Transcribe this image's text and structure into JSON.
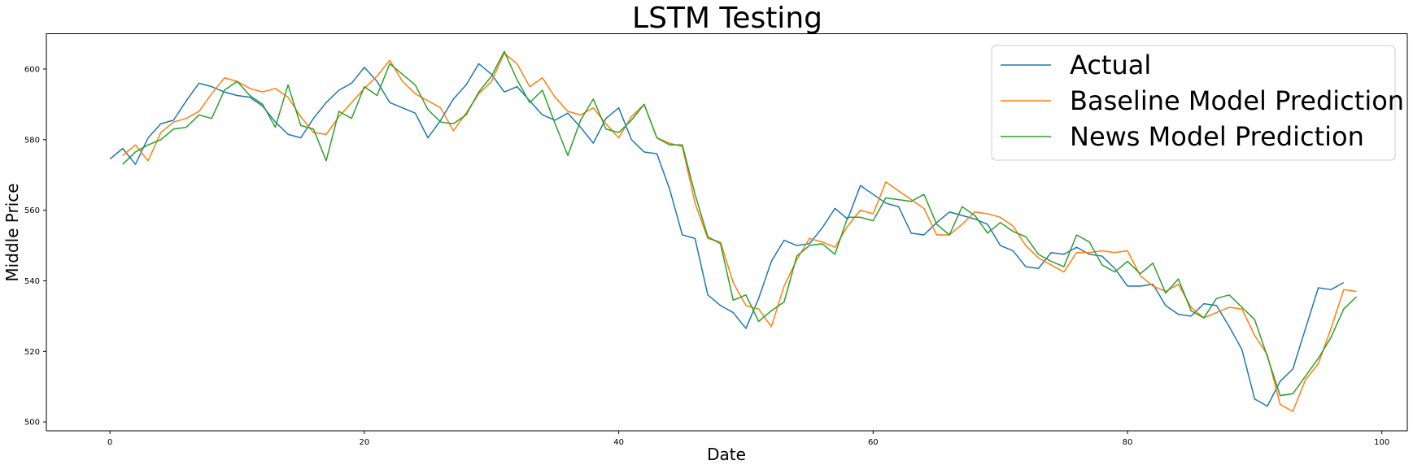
{
  "chart_data": {
    "type": "line",
    "title": "LSTM Testing",
    "xlabel": "Date",
    "ylabel": "Middle Price",
    "xlim": [
      -5,
      102
    ],
    "ylim": [
      497.5,
      610
    ],
    "xticks": [
      0,
      20,
      40,
      60,
      80,
      100
    ],
    "yticks": [
      500,
      520,
      540,
      560,
      580,
      600
    ],
    "legend_position": "top-right",
    "grid": false,
    "series": [
      {
        "name": "Actual",
        "color": "#1f77b4",
        "x_start": 0,
        "values": [
          574.5,
          577.5,
          573.0,
          580.5,
          584.5,
          585.5,
          591.0,
          596.0,
          595.0,
          593.5,
          592.5,
          592.0,
          589.5,
          585.0,
          581.5,
          580.5,
          586.0,
          590.5,
          594.0,
          596.0,
          600.5,
          596.5,
          590.5,
          589.0,
          587.5,
          580.5,
          585.5,
          591.5,
          595.5,
          601.5,
          598.5,
          593.5,
          595.0,
          591.0,
          587.0,
          585.5,
          587.5,
          583.5,
          579.0,
          586.0,
          589.0,
          580.0,
          576.5,
          576.0,
          566.0,
          553.0,
          552.0,
          536.0,
          533.0,
          531.0,
          526.5,
          535.0,
          545.5,
          551.5,
          550.0,
          550.5,
          555.0,
          560.5,
          557.5,
          567.0,
          564.5,
          562.0,
          561.0,
          553.5,
          553.0,
          556.5,
          559.5,
          558.5,
          557.5,
          556.0,
          550.0,
          548.5,
          544.0,
          543.5,
          548.0,
          547.5,
          549.5,
          547.5,
          547.0,
          543.5,
          538.5,
          538.5,
          539.0,
          533.0,
          530.5,
          530.0,
          533.5,
          533.0,
          527.0,
          520.5,
          506.5,
          504.5,
          511.5,
          515.0,
          526.5,
          538.0,
          537.5,
          539.5
        ]
      },
      {
        "name": "Baseline Model Prediction",
        "color": "#ff7f0e",
        "x_start": 1,
        "values": [
          575.5,
          578.5,
          574.0,
          582.0,
          585.0,
          586.0,
          588.0,
          593.0,
          597.5,
          596.5,
          594.5,
          593.5,
          594.5,
          592.0,
          586.5,
          582.0,
          581.5,
          586.5,
          590.5,
          594.5,
          598.0,
          602.5,
          596.5,
          593.0,
          591.0,
          589.0,
          582.5,
          587.5,
          593.0,
          596.5,
          604.5,
          601.5,
          595.0,
          597.5,
          592.0,
          588.0,
          587.0,
          589.0,
          584.5,
          580.5,
          586.5,
          590.0,
          580.5,
          579.0,
          578.0,
          562.0,
          552.0,
          551.0,
          539.5,
          533.0,
          532.0,
          527.0,
          538.5,
          546.0,
          552.0,
          551.0,
          549.5,
          555.5,
          560.0,
          559.0,
          568.0,
          565.5,
          563.0,
          560.5,
          553.0,
          553.0,
          556.0,
          559.5,
          559.0,
          558.0,
          555.5,
          550.0,
          546.5,
          544.5,
          542.5,
          548.0,
          548.0,
          548.5,
          548.0,
          548.5,
          541.5,
          538.5,
          537.0,
          539.0,
          532.5,
          529.5,
          531.0,
          532.5,
          532.0,
          524.5,
          519.0,
          505.0,
          503.0,
          512.0,
          516.5,
          526.5,
          537.5,
          537.0
        ]
      },
      {
        "name": "News Model Prediction",
        "color": "#2ca02c",
        "x_start": 1,
        "values": [
          573.0,
          576.5,
          578.5,
          580.0,
          583.0,
          583.5,
          587.0,
          586.0,
          594.0,
          596.5,
          592.5,
          590.0,
          583.5,
          595.5,
          584.0,
          583.0,
          574.0,
          588.0,
          586.0,
          595.0,
          592.5,
          601.5,
          598.5,
          595.5,
          588.5,
          585.0,
          584.5,
          587.0,
          593.5,
          598.0,
          605.0,
          597.0,
          590.5,
          594.0,
          584.5,
          575.5,
          585.5,
          591.5,
          583.0,
          582.0,
          585.5,
          590.0,
          580.5,
          578.5,
          578.5,
          564.5,
          552.5,
          550.5,
          534.5,
          536.0,
          528.5,
          531.5,
          534.0,
          547.0,
          550.0,
          550.5,
          547.5,
          558.0,
          558.0,
          557.0,
          563.5,
          563.0,
          562.5,
          564.5,
          556.0,
          553.0,
          561.0,
          558.5,
          553.5,
          556.5,
          554.0,
          552.5,
          547.5,
          545.5,
          544.0,
          553.0,
          551.0,
          544.5,
          542.5,
          545.5,
          542.0,
          545.0,
          536.5,
          540.5,
          531.5,
          529.5,
          535.0,
          536.0,
          532.5,
          529.0,
          518.5,
          507.5,
          508.0,
          513.0,
          518.0,
          524.0,
          532.0,
          535.5
        ]
      }
    ]
  }
}
